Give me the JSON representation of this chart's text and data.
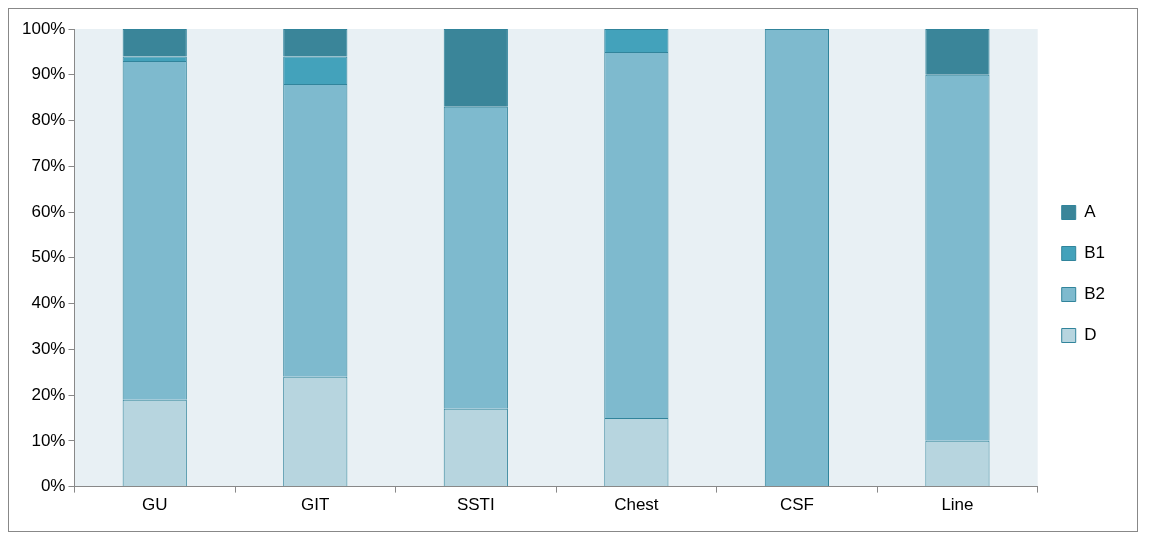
{
  "chart_data": {
    "type": "bar",
    "stacked": true,
    "categories": [
      "GU",
      "GIT",
      "SSTI",
      "Chest",
      "CSF",
      "Line"
    ],
    "series": [
      {
        "name": "D",
        "color": "#b7d5df",
        "values": [
          19,
          24,
          17,
          15,
          0,
          10
        ]
      },
      {
        "name": "B2",
        "color": "#7ebace",
        "values": [
          74,
          64,
          66,
          80,
          100,
          80
        ]
      },
      {
        "name": "B1",
        "color": "#43a2bb",
        "values": [
          1,
          6,
          0,
          5,
          0,
          0
        ]
      },
      {
        "name": "A",
        "color": "#3a8599",
        "values": [
          6,
          6,
          17,
          0,
          0,
          10
        ]
      }
    ],
    "ylim": [
      0,
      100
    ],
    "yticks": [
      {
        "value": 0,
        "label": "0%"
      },
      {
        "value": 10,
        "label": "10%"
      },
      {
        "value": 20,
        "label": "20%"
      },
      {
        "value": 30,
        "label": "30%"
      },
      {
        "value": 40,
        "label": "40%"
      },
      {
        "value": 50,
        "label": "50%"
      },
      {
        "value": 60,
        "label": "60%"
      },
      {
        "value": 70,
        "label": "70%"
      },
      {
        "value": 80,
        "label": "80%"
      },
      {
        "value": 90,
        "label": "90%"
      },
      {
        "value": 100,
        "label": "100%"
      }
    ],
    "grid": false,
    "legend": "right"
  }
}
